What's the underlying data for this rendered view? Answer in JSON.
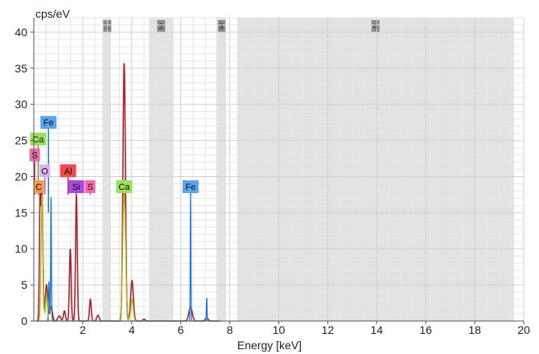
{
  "chart_data": {
    "type": "line",
    "title": "",
    "ylabel": "cps/eV",
    "xlabel": "Energy [keV]",
    "xlim": [
      0,
      20
    ],
    "ylim": [
      0,
      42
    ],
    "xticks": [
      {
        "value": 2,
        "label": "2"
      },
      {
        "value": 4,
        "label": "4"
      },
      {
        "value": 6,
        "label": "6"
      },
      {
        "value": 8,
        "label": "8"
      },
      {
        "value": 10,
        "label": "10"
      },
      {
        "value": 12,
        "label": "12"
      },
      {
        "value": 14,
        "label": "14"
      },
      {
        "value": 16,
        "label": "16"
      },
      {
        "value": 18,
        "label": "18"
      },
      {
        "value": 20,
        "label": "20"
      }
    ],
    "yticks": [
      {
        "value": 0,
        "label": "0"
      },
      {
        "value": 5,
        "label": "5"
      },
      {
        "value": 10,
        "label": "10"
      },
      {
        "value": 15,
        "label": "15"
      },
      {
        "value": 20,
        "label": "20"
      },
      {
        "value": 25,
        "label": "25"
      },
      {
        "value": 30,
        "label": "30"
      },
      {
        "value": 35,
        "label": "35"
      },
      {
        "value": 40,
        "label": "40"
      }
    ],
    "grid": true,
    "regions": [
      {
        "label": "1",
        "start": 2.8,
        "end": 3.15,
        "label_at": 3.0
      },
      {
        "label": "2",
        "start": 4.7,
        "end": 5.7,
        "label_at": 5.2
      },
      {
        "label": "3",
        "start": 7.45,
        "end": 7.85,
        "label_at": 7.65
      },
      {
        "label": "4",
        "start": 8.3,
        "end": 19.6,
        "label_at": 13.95
      }
    ],
    "series": [
      {
        "color": "#b01f2a",
        "peaks": [
          {
            "x": 0.26,
            "y": 17.0,
            "w": 0.03
          },
          {
            "x": 0.34,
            "y": 17.5,
            "w": 0.035
          },
          {
            "x": 0.52,
            "y": 5.0,
            "w": 0.05
          },
          {
            "x": 0.71,
            "y": 2.0,
            "w": 0.05
          },
          {
            "x": 1.04,
            "y": 0.7,
            "w": 0.06
          },
          {
            "x": 1.25,
            "y": 1.4,
            "w": 0.04
          },
          {
            "x": 1.49,
            "y": 10.0,
            "w": 0.035
          },
          {
            "x": 1.74,
            "y": 17.5,
            "w": 0.035
          },
          {
            "x": 2.31,
            "y": 3.0,
            "w": 0.035
          },
          {
            "x": 2.62,
            "y": 0.8,
            "w": 0.05
          },
          {
            "x": 3.69,
            "y": 35.7,
            "w": 0.05
          },
          {
            "x": 4.01,
            "y": 5.6,
            "w": 0.055
          },
          {
            "x": 4.5,
            "y": 0.25,
            "w": 0.05
          },
          {
            "x": 6.4,
            "y": 1.9,
            "w": 0.07
          },
          {
            "x": 7.06,
            "y": 0.4,
            "w": 0.06
          }
        ]
      },
      {
        "color": "#1f78d4",
        "peaks": [
          {
            "x": 0.62,
            "y": 5.5,
            "w": 0.02
          },
          {
            "x": 0.705,
            "y": 17.2,
            "w": 0.016
          },
          {
            "x": 6.4,
            "y": 17.2,
            "w": 0.013
          },
          {
            "x": 7.06,
            "y": 3.2,
            "w": 0.013
          }
        ]
      },
      {
        "color": "#a6c21a",
        "peaks": [
          {
            "x": 0.34,
            "y": 17.5,
            "w": 0.04
          },
          {
            "x": 0.52,
            "y": 3.5,
            "w": 0.04
          },
          {
            "x": 3.69,
            "y": 17.5,
            "w": 0.06
          },
          {
            "x": 4.01,
            "y": 3.0,
            "w": 0.05
          }
        ]
      }
    ],
    "element_labels": [
      {
        "text": "Fe",
        "x": 0.6,
        "y": 27.5,
        "color": "#5ba3f0",
        "line_to": 15.0,
        "line_color": "#1f78d4"
      },
      {
        "text": "Ca",
        "x": 0.18,
        "y": 25.2,
        "color": "#9be05a",
        "line_to": 17.5,
        "line_color": "#5aa02a"
      },
      {
        "text": "S",
        "x": 0.04,
        "y": 23.0,
        "color": "#f06aa8",
        "line_to": 17.5,
        "line_color": "#c8306e"
      },
      {
        "text": "O",
        "x": 0.45,
        "y": 20.8,
        "color": "#d9b0f0",
        "line_to": 17.5,
        "line_color": "#a070c8"
      },
      {
        "text": "C",
        "x": 0.2,
        "y": 18.6,
        "color": "#f39a4a",
        "line_to": 17.5,
        "line_color": "#e0701a"
      },
      {
        "text": "Al",
        "x": 1.4,
        "y": 20.8,
        "color": "#f04a4a",
        "line_to": 17.5,
        "line_color": "#c42020"
      },
      {
        "text": "Si",
        "x": 1.73,
        "y": 18.6,
        "color": "#a84ae0",
        "line_to": 17.5,
        "line_color": "#7a20b0"
      },
      {
        "text": "S",
        "x": 2.3,
        "y": 18.6,
        "color": "#f06aa8",
        "line_to": 17.5,
        "line_color": "#c8306e"
      },
      {
        "text": "Ca",
        "x": 3.69,
        "y": 18.6,
        "color": "#9be05a",
        "line_to": 17.5,
        "line_color": "#5aa02a"
      },
      {
        "text": "Fe",
        "x": 6.4,
        "y": 18.6,
        "color": "#5ba3f0",
        "line_to": 17.2,
        "line_color": "#1f78d4"
      }
    ]
  }
}
